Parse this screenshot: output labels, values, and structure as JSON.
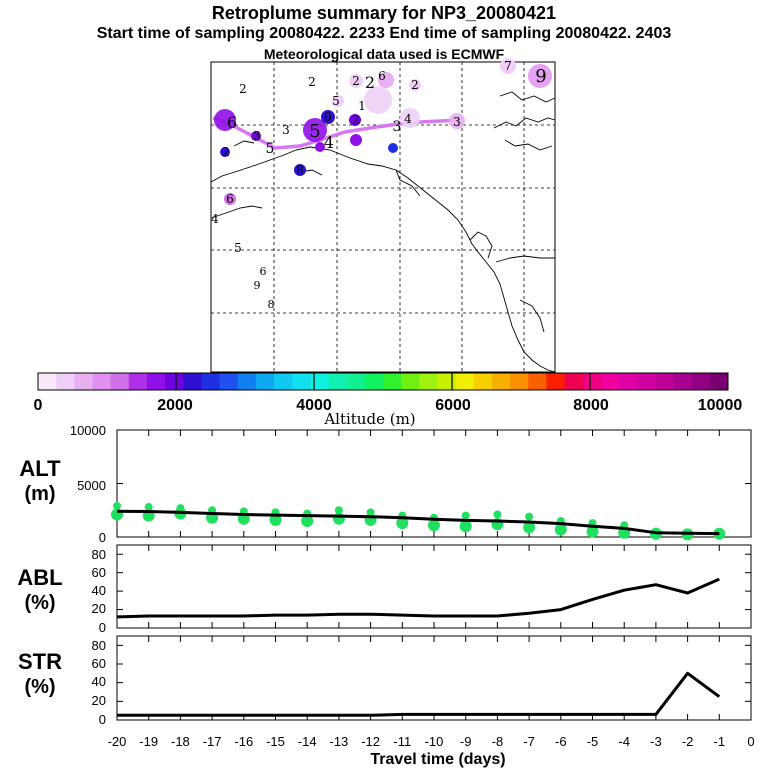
{
  "header": {
    "title": "Retroplume summary for NP3_20080421",
    "sampling": "Start time of sampling 20080422.  2233     End time of sampling 20080422.  2403",
    "met": "Meteorological data used is ECMWF"
  },
  "colorbar": {
    "colors": [
      "#f8e8f8",
      "#f0d0f8",
      "#e8b0f0",
      "#e090f0",
      "#d070e8",
      "#b030e8",
      "#9010e8",
      "#7000e0",
      "#3010d0",
      "#2030e0",
      "#2050f0",
      "#1080f0",
      "#10a8f0",
      "#10c8f0",
      "#10e0f0",
      "#10f0e0",
      "#10f0b0",
      "#10f090",
      "#10f060",
      "#30f030",
      "#70f010",
      "#a0f010",
      "#c8f000",
      "#f0f000",
      "#f8d000",
      "#f8b000",
      "#f89000",
      "#f86000",
      "#f82000",
      "#f00050",
      "#f00080",
      "#f000a0",
      "#e000a8",
      "#d000a0",
      "#c00098",
      "#a80090",
      "#900080",
      "#780070"
    ],
    "tick_labels": [
      "0",
      "2000",
      "4000",
      "6000",
      "8000",
      "10000"
    ],
    "label": "Altitude (m)"
  },
  "map": {
    "labels": [
      "2",
      "2",
      "2",
      "6",
      "2",
      "2",
      "7",
      "9",
      "5",
      "1",
      "3",
      "0",
      "2",
      "6",
      "3",
      "5",
      "4",
      "3",
      "3",
      "2",
      "4",
      "5",
      "8",
      "6",
      "4",
      "5",
      "6",
      "9",
      "8"
    ]
  },
  "panels": {
    "alt_label": [
      "ALT",
      "(m)"
    ],
    "abl_label": [
      "ABL",
      "(%)"
    ],
    "str_label": [
      "STR",
      "(%)"
    ],
    "alt_yticks": [
      "10000",
      "5000",
      "0"
    ],
    "pct_yticks": [
      "80",
      "60",
      "40",
      "20",
      "0"
    ],
    "xlabel": "Travel time (days)"
  },
  "chart_data": {
    "type": "line",
    "x": [
      -20,
      -19,
      -18,
      -17,
      -16,
      -15,
      -14,
      -13,
      -12,
      -11,
      -10,
      -9,
      -8,
      -7,
      -6,
      -5,
      -4,
      -3,
      -2,
      -1
    ],
    "x_tick_labels": [
      "-20",
      "-19",
      "-18",
      "-17",
      "-16",
      "-15",
      "-14",
      "-13",
      "-12",
      "-11",
      "-10",
      "-9",
      "-8",
      "-7",
      "-6",
      "-5",
      "-4",
      "-3",
      "-2",
      "-1",
      "0"
    ],
    "xlim": [
      -20,
      0
    ],
    "xlabel": "Travel time (days)",
    "series": [
      {
        "name": "ALT",
        "unit": "m",
        "ylim": [
          0,
          10000
        ],
        "x": [
          -20,
          -19,
          -18,
          -17,
          -16,
          -15,
          -14,
          -13,
          -12,
          -11,
          -10,
          -9,
          -8,
          -7,
          -6,
          -5,
          -4,
          -3,
          -2,
          -1
        ],
        "values": [
          2400,
          2380,
          2300,
          2200,
          2100,
          2050,
          2000,
          1950,
          1900,
          1800,
          1650,
          1550,
          1500,
          1400,
          1250,
          1000,
          800,
          400,
          350,
          320
        ]
      },
      {
        "name": "ABL",
        "unit": "%",
        "ylim": [
          0,
          90
        ],
        "x": [
          -20,
          -19,
          -18,
          -17,
          -16,
          -15,
          -14,
          -13,
          -12,
          -11,
          -10,
          -9,
          -8,
          -7,
          -6,
          -5,
          -4,
          -3,
          -2,
          -1
        ],
        "values": [
          12,
          13,
          13,
          13,
          13,
          14,
          14,
          15,
          15,
          14,
          13,
          13,
          13,
          16,
          20,
          31,
          41,
          47,
          38,
          53
        ]
      },
      {
        "name": "STR",
        "unit": "%",
        "ylim": [
          0,
          90
        ],
        "x": [
          -20,
          -19,
          -18,
          -17,
          -16,
          -15,
          -14,
          -13,
          -12,
          -11,
          -10,
          -9,
          -8,
          -7,
          -6,
          -5,
          -4,
          -3,
          -2,
          -1
        ],
        "values": [
          5,
          5,
          5,
          5,
          5,
          5,
          5,
          5,
          5,
          6,
          6,
          6,
          6,
          6,
          6,
          6,
          6,
          6,
          50,
          25
        ]
      }
    ],
    "alt_scatter": [
      {
        "x": -20,
        "y": [
          2900,
          2100
        ]
      },
      {
        "x": -19,
        "y": [
          2800,
          2000
        ]
      },
      {
        "x": -18,
        "y": [
          2700,
          2200
        ]
      },
      {
        "x": -17,
        "y": [
          2500,
          1800
        ]
      },
      {
        "x": -16,
        "y": [
          2400,
          1700
        ]
      },
      {
        "x": -15,
        "y": [
          2300,
          1600
        ]
      },
      {
        "x": -14,
        "y": [
          2200,
          1500
        ]
      },
      {
        "x": -13,
        "y": [
          2500,
          1700
        ]
      },
      {
        "x": -12,
        "y": [
          2300,
          1600
        ]
      },
      {
        "x": -11,
        "y": [
          2000,
          1300
        ]
      },
      {
        "x": -10,
        "y": [
          1800,
          1100
        ]
      },
      {
        "x": -9,
        "y": [
          2000,
          1000
        ]
      },
      {
        "x": -8,
        "y": [
          2100,
          1200
        ]
      },
      {
        "x": -7,
        "y": [
          1900,
          900
        ]
      },
      {
        "x": -6,
        "y": [
          1500,
          700
        ]
      },
      {
        "x": -5,
        "y": [
          1300,
          500
        ]
      },
      {
        "x": -4,
        "y": [
          1100,
          400
        ]
      },
      {
        "x": -3,
        "y": [
          500,
          300
        ]
      },
      {
        "x": -2,
        "y": [
          400,
          250
        ]
      },
      {
        "x": -1,
        "y": [
          450,
          300
        ]
      }
    ]
  }
}
